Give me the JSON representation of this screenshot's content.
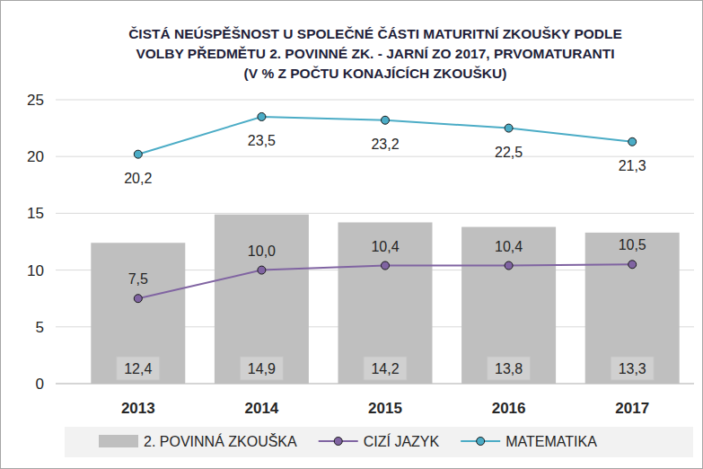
{
  "chart_data": {
    "type": "bar",
    "title": "ČISTÁ NEÚSPĚŠNOST U SPOLEČNÉ ČÁSTI MATURITNÍ ZKOUŠKY  PODLE\nVOLBY PŘEDMĚTU 2. POVINNÉ ZK. - JARNÍ ZO 2017, PRVOMATURANTI\n(V % Z POČTU KONAJÍCÍCH ZKOUŠKU)",
    "categories": [
      "2013",
      "2014",
      "2015",
      "2016",
      "2017"
    ],
    "series": [
      {
        "name": "2. POVINNÁ ZKOUŠKA",
        "type": "bar",
        "color": "#bfbfbf",
        "values": [
          12.4,
          14.9,
          14.2,
          13.8,
          13.3
        ],
        "value_labels": [
          "12,4",
          "14,9",
          "14,2",
          "13,8",
          "13,3"
        ]
      },
      {
        "name": "CIZÍ JAZYK",
        "type": "line",
        "color": "#8064a2",
        "marker": "circle",
        "line_style": "solid",
        "values": [
          7.5,
          10.0,
          10.4,
          10.4,
          10.5
        ],
        "value_labels": [
          "7,5",
          "10,0",
          "10,4",
          "10,4",
          "10,5"
        ]
      },
      {
        "name": "MATEMATIKA",
        "type": "line",
        "color": "#4bacc6",
        "marker": "circle",
        "line_style": "solid",
        "values": [
          20.2,
          23.5,
          23.2,
          22.5,
          21.3
        ],
        "value_labels": [
          "20,2",
          "23,5",
          "23,2",
          "22,5",
          "21,3"
        ]
      }
    ],
    "ylim": [
      0,
      25
    ],
    "yticks": [
      0,
      5,
      10,
      15,
      20,
      25
    ],
    "grid": true,
    "data_labels": true,
    "legend": "bottom"
  }
}
